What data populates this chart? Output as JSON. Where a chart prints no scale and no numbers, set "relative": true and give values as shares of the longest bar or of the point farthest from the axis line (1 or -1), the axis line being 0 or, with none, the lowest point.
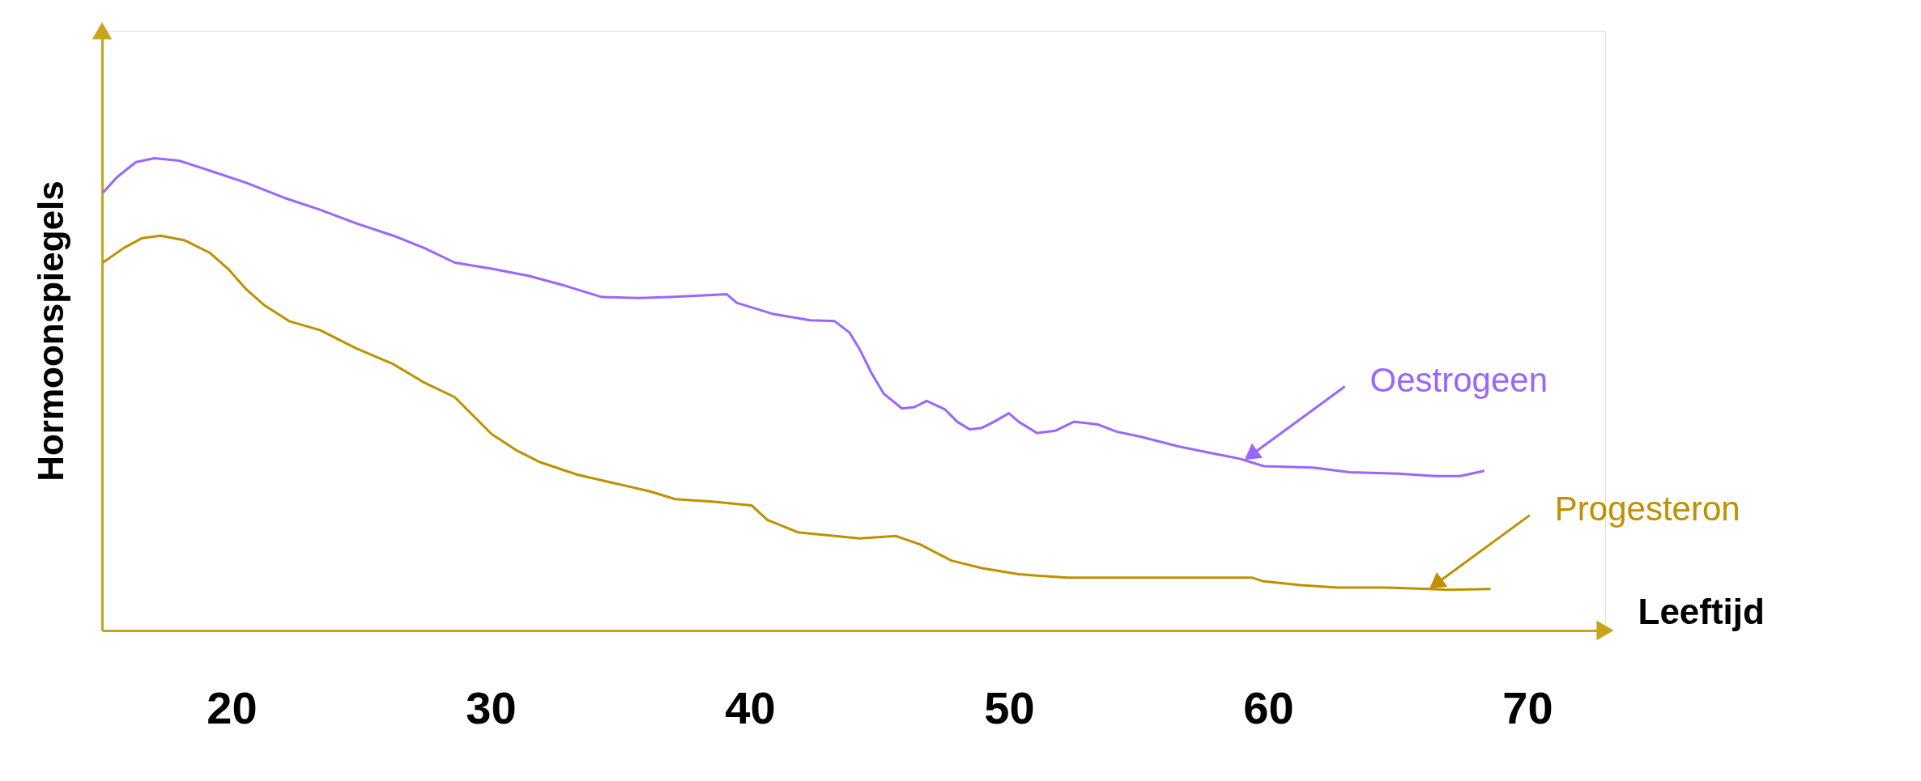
{
  "chart_data": {
    "type": "line",
    "xlabel": "Leeftijd",
    "ylabel": "Hormoonspiegels",
    "relative": true,
    "xlim": [
      15,
      73
    ],
    "xticks": [
      20,
      30,
      40,
      50,
      60,
      70
    ],
    "grid": false,
    "legend": false,
    "marker": "none",
    "line_style": "solid",
    "tick_labels": "x",
    "series": [
      {
        "color": "#9966ff",
        "x": [
          15.03,
          15.6,
          16.31,
          17.02,
          17.97,
          19.15,
          20.57,
          21.99,
          23.41,
          24.82,
          26.24,
          27.43,
          28.61,
          30.03,
          31.45,
          32.87,
          34.29,
          35.7,
          36.89,
          38.07,
          39.11,
          39.49,
          40.91,
          42.33,
          43.27,
          43.84,
          44.22,
          44.69,
          45.17,
          45.87,
          46.35,
          46.82,
          47.53,
          48.0,
          48.48,
          48.95,
          49.42,
          49.99,
          50.37,
          51.08,
          51.79,
          52.5,
          53.44,
          54.15,
          55.1,
          56.52,
          57.94,
          58.88,
          59.83,
          61.72,
          63.14,
          65.03,
          66.45,
          67.4,
          68.34
        ],
        "values": [
          0.927,
          0.961,
          0.992,
          1.0,
          0.995,
          0.974,
          0.948,
          0.917,
          0.891,
          0.862,
          0.836,
          0.81,
          0.779,
          0.766,
          0.751,
          0.73,
          0.706,
          0.704,
          0.706,
          0.709,
          0.712,
          0.694,
          0.67,
          0.657,
          0.655,
          0.631,
          0.597,
          0.545,
          0.501,
          0.47,
          0.473,
          0.486,
          0.468,
          0.442,
          0.426,
          0.429,
          0.442,
          0.46,
          0.442,
          0.418,
          0.423,
          0.442,
          0.436,
          0.421,
          0.41,
          0.39,
          0.374,
          0.364,
          0.348,
          0.345,
          0.335,
          0.332,
          0.327,
          0.327,
          0.338
        ]
      },
      {
        "color": "#bf9000",
        "x": [
          15.03,
          15.84,
          16.55,
          17.26,
          18.2,
          19.15,
          19.86,
          20.57,
          21.28,
          22.22,
          23.41,
          24.82,
          26.24,
          27.43,
          28.61,
          29.32,
          30.03,
          30.97,
          31.92,
          33.34,
          34.76,
          36.18,
          37.12,
          38.54,
          40.06,
          40.67,
          41.85,
          44.22,
          45.64,
          46.58,
          47.77,
          48.95,
          50.37,
          52.26,
          55.57,
          59.36,
          59.83,
          61.25,
          62.67,
          64.56,
          66.22,
          66.93,
          68.58
        ],
        "values": [
          0.779,
          0.81,
          0.831,
          0.836,
          0.826,
          0.8,
          0.766,
          0.722,
          0.688,
          0.655,
          0.636,
          0.597,
          0.564,
          0.525,
          0.494,
          0.455,
          0.416,
          0.382,
          0.356,
          0.33,
          0.312,
          0.294,
          0.278,
          0.273,
          0.265,
          0.234,
          0.208,
          0.195,
          0.2,
          0.182,
          0.148,
          0.132,
          0.119,
          0.112,
          0.112,
          0.112,
          0.104,
          0.096,
          0.091,
          0.091,
          0.088,
          0.086,
          0.088
        ]
      }
    ],
    "annotations": [
      "Oestrogeen",
      "Progesteron"
    ]
  }
}
